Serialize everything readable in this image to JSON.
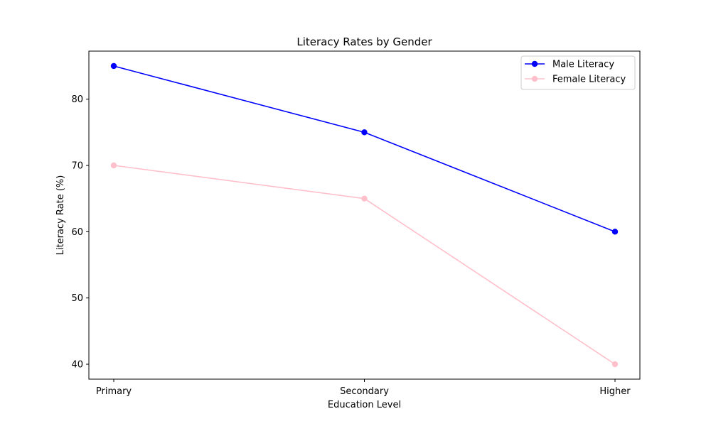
{
  "chart_data": {
    "type": "line",
    "title": "Literacy Rates by Gender",
    "xlabel": "Education Level",
    "ylabel": "Literacy Rate (%)",
    "categories": [
      "Primary",
      "Secondary",
      "Higher"
    ],
    "series": [
      {
        "name": "Male Literacy",
        "values": [
          85,
          75,
          60
        ],
        "color": "#0000ff"
      },
      {
        "name": "Female Literacy",
        "values": [
          70,
          65,
          40
        ],
        "color": "#ffc0cb"
      }
    ],
    "ylim": [
      37.75,
      87.25
    ],
    "yticks": [
      40,
      50,
      60,
      70,
      80
    ],
    "grid": false,
    "legend": "top-right"
  }
}
